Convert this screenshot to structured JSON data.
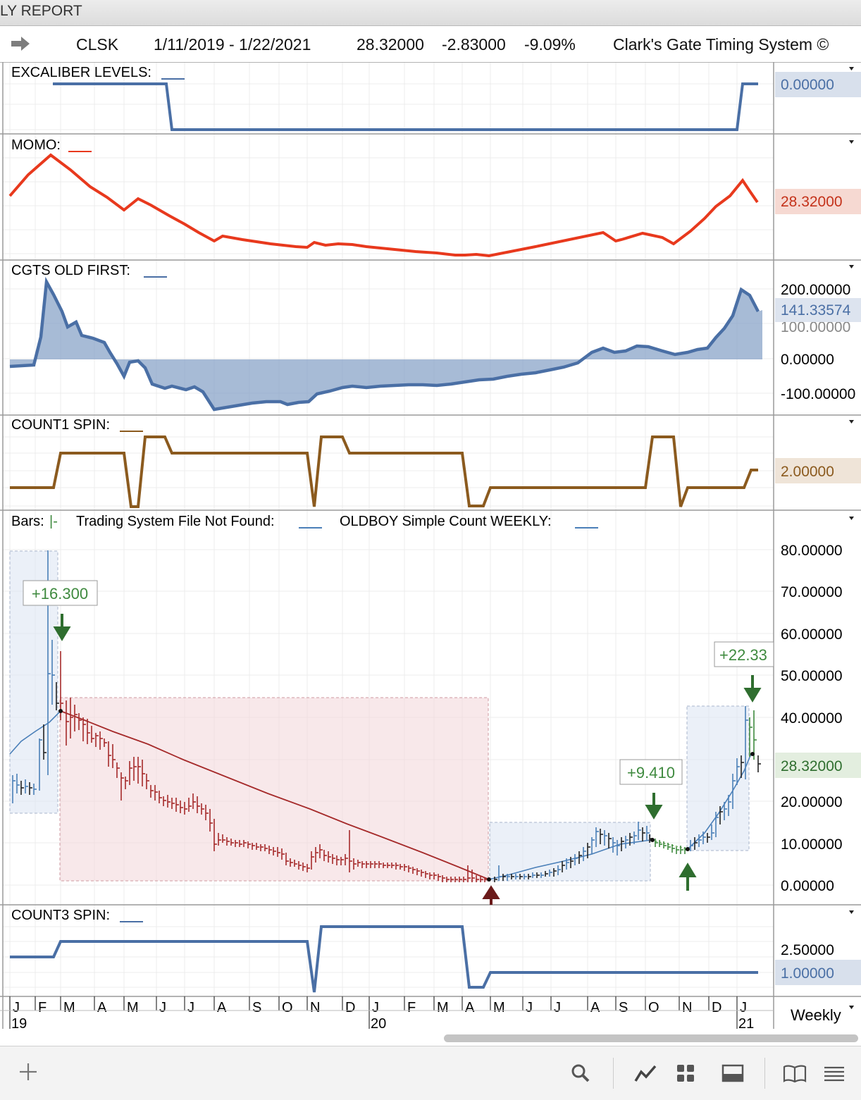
{
  "window": {
    "title": "LY REPORT"
  },
  "header": {
    "symbol": "CLSK",
    "date_range": "1/11/2019 - 1/22/2021",
    "last": "28.32000",
    "change": "-2.83000",
    "change_pct": "-9.09%",
    "system": "Clark's Gate Timing System ©"
  },
  "panes": {
    "excaliber": {
      "label": "EXCALIBER LEVELS:",
      "value": "0.00000",
      "color": "#4a6fa5"
    },
    "momo": {
      "label": "MOMO:",
      "value": "28.32000",
      "color": "#e8391d"
    },
    "cgts": {
      "label": "CGTS OLD FIRST:",
      "value": "141.33574",
      "ticks": [
        "200.00000",
        "100.00000",
        "0.00000",
        "-100.00000"
      ],
      "color": "#4a6fa5"
    },
    "count1": {
      "label": "COUNT1 SPIN:",
      "value": "2.00000",
      "color": "#8b5a1e"
    },
    "price": {
      "label_bars": "Bars:",
      "label_bars_marker": "|-",
      "label_trading": "Trading System File Not Found:",
      "label_oldboy": "OLDBOY Simple Count WEEKLY:",
      "value": "28.32000",
      "ticks": [
        "80.00000",
        "70.00000",
        "60.00000",
        "50.00000",
        "40.00000",
        "20.00000",
        "10.00000",
        "0.00000"
      ],
      "annotations": [
        "+16.300",
        "+9.410",
        "+22.33"
      ]
    },
    "count3": {
      "label": "COUNT3 SPIN:",
      "value": "1.00000",
      "ticks": [
        "2.50000"
      ],
      "color": "#4a6fa5"
    }
  },
  "xaxis": {
    "months": [
      "J",
      "F",
      "M",
      "A",
      "M",
      "J",
      "J",
      "A",
      "S",
      "O",
      "N",
      "D",
      "J",
      "F",
      "M",
      "A",
      "M",
      "J",
      "J",
      "A",
      "S",
      "O",
      "N",
      "D",
      "J"
    ],
    "years": [
      "19",
      "20",
      "21"
    ],
    "period": "Weekly"
  },
  "toolbar": {
    "icons": [
      "add-icon",
      "search-icon",
      "line-chart-icon",
      "grid-icon",
      "layout-icon",
      "book-icon",
      "menu-icon"
    ]
  },
  "chart_data": {
    "type": "line",
    "title": "CLSK 1/11/2019 - 1/22/2021",
    "x": [
      "2019-01",
      "2019-02",
      "2019-03",
      "2019-04",
      "2019-05",
      "2019-06",
      "2019-07",
      "2019-08",
      "2019-09",
      "2019-10",
      "2019-11",
      "2019-12",
      "2020-01",
      "2020-02",
      "2020-03",
      "2020-04",
      "2020-05",
      "2020-06",
      "2020-07",
      "2020-08",
      "2020-09",
      "2020-10",
      "2020-11",
      "2020-12",
      "2021-01"
    ],
    "series": [
      {
        "name": "Bars",
        "values": [
          24,
          36,
          40,
          33,
          26,
          21,
          18,
          11,
          9,
          6,
          8,
          8,
          5,
          4,
          2,
          1,
          3,
          4,
          6,
          13,
          12,
          11,
          8,
          16,
          31
        ]
      }
    ],
    "ylim": [
      0,
      80
    ],
    "ylabel": ""
  }
}
